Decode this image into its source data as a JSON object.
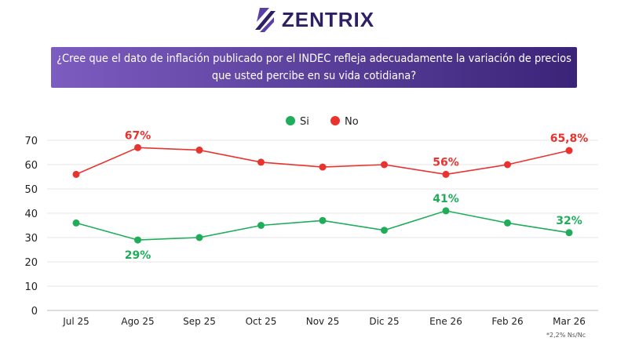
{
  "logo": {
    "text": "ZENTRIX"
  },
  "question": {
    "line1": "¿Cree que el dato de inflación publicado por el INDEC refleja adecuadamente la variación de precios",
    "line2": "que usted percibe en su vida cotidiana?"
  },
  "footnote": "*2,2% Ns/Nc",
  "chart_data": {
    "type": "line",
    "title": "",
    "xlabel": "",
    "ylabel": "",
    "categories": [
      "Jul 25",
      "Ago 25",
      "Sep 25",
      "Oct 25",
      "Nov 25",
      "Dic 25",
      "Ene 26",
      "Feb 26",
      "Mar 26"
    ],
    "ylim": [
      0,
      70
    ],
    "yticks": [
      0,
      10,
      20,
      30,
      40,
      50,
      60,
      70
    ],
    "grid": true,
    "legend_position": "top",
    "series": [
      {
        "name": "Si",
        "color": "#1fad5a",
        "values": [
          36,
          29,
          30,
          35,
          37,
          33,
          41,
          36,
          32
        ],
        "labels": [
          {
            "index": 1,
            "text": "29%",
            "pos": "below"
          },
          {
            "index": 6,
            "text": "41%",
            "pos": "above"
          },
          {
            "index": 8,
            "text": "32%",
            "pos": "above"
          }
        ]
      },
      {
        "name": "No",
        "color": "#e8332f",
        "values": [
          56,
          67,
          66,
          61,
          59,
          60,
          56,
          60,
          65.8
        ],
        "labels": [
          {
            "index": 1,
            "text": "67%",
            "pos": "above"
          },
          {
            "index": 6,
            "text": "56%",
            "pos": "above"
          },
          {
            "index": 8,
            "text": "65,8%",
            "pos": "above"
          }
        ]
      }
    ]
  }
}
